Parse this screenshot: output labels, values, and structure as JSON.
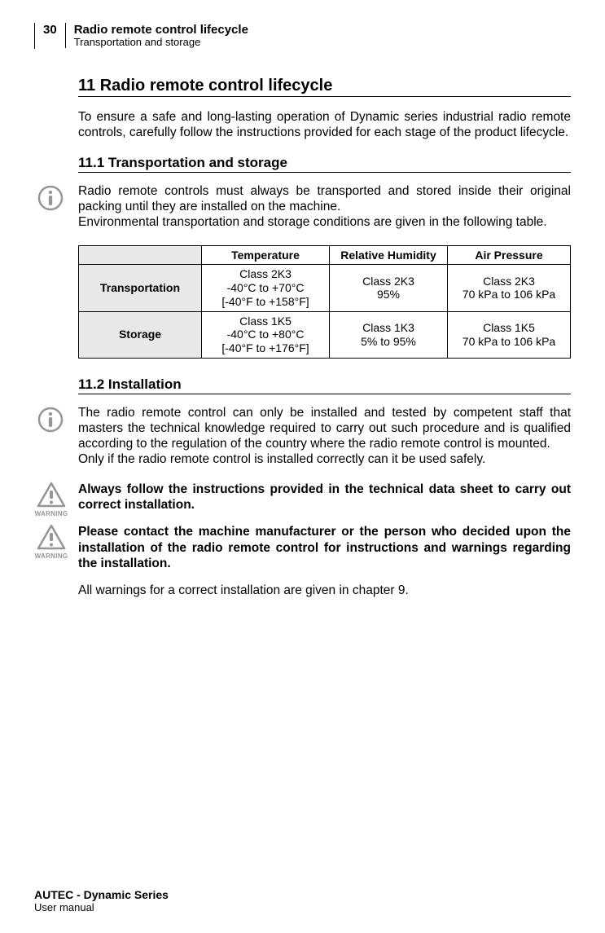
{
  "header": {
    "page_number": "30",
    "title": "Radio remote control lifecycle",
    "subtitle": "Transportation and storage"
  },
  "section": {
    "title": "11 Radio remote control lifecycle",
    "intro": "To ensure a safe and long-lasting operation of Dynamic series industrial radio remote controls, carefully follow the instructions provided for each stage of the product lifecycle."
  },
  "sub1": {
    "title": "11.1 Transportation and storage",
    "p1": "Radio remote controls must always be transported and stored inside their original packing until they are installed on the machine.",
    "p2": "Environmental transportation and storage conditions are given in the following table."
  },
  "table": {
    "columns": [
      "",
      "Temperature",
      "Relative Humidity",
      "Air Pressure"
    ],
    "rows": [
      {
        "head": "Transportation",
        "cells": [
          "Class 2K3\n-40°C to +70°C\n[-40°F to +158°F]",
          "Class 2K3\n95%",
          "Class 2K3\n70 kPa to 106 kPa"
        ]
      },
      {
        "head": "Storage",
        "cells": [
          "Class 1K5\n-40°C to +80°C\n[-40°F to +176°F]",
          "Class 1K3\n5% to 95%",
          "Class 1K5\n70 kPa to 106 kPa"
        ]
      }
    ],
    "col_widths": [
      "25%",
      "26%",
      "24%",
      "25%"
    ],
    "header_bg": "#e8e8e8",
    "border_color": "#000000"
  },
  "sub2": {
    "title": "11.2 Installation",
    "p1": "The radio remote control can only be installed and tested by competent staff that masters the technical knowledge required to carry out such procedure and is qualified according to the regulation of the country where the radio remote control is mounted.",
    "p2": "Only if the radio remote control is installed correctly can it be used safely.",
    "w1": "Always follow the instructions provided in the technical data sheet to carry out correct installation.",
    "w2": "Please contact the machine manufacturer or the person who decided upon the installation of the radio remote control for instructions and warnings regarding the installation.",
    "p3": "All warnings for a correct installation are given in chapter 9."
  },
  "warning_label": "WARNING",
  "footer": {
    "main": "AUTEC - Dynamic Series",
    "sub": "User manual"
  },
  "colors": {
    "icon_gray": "#969696"
  }
}
